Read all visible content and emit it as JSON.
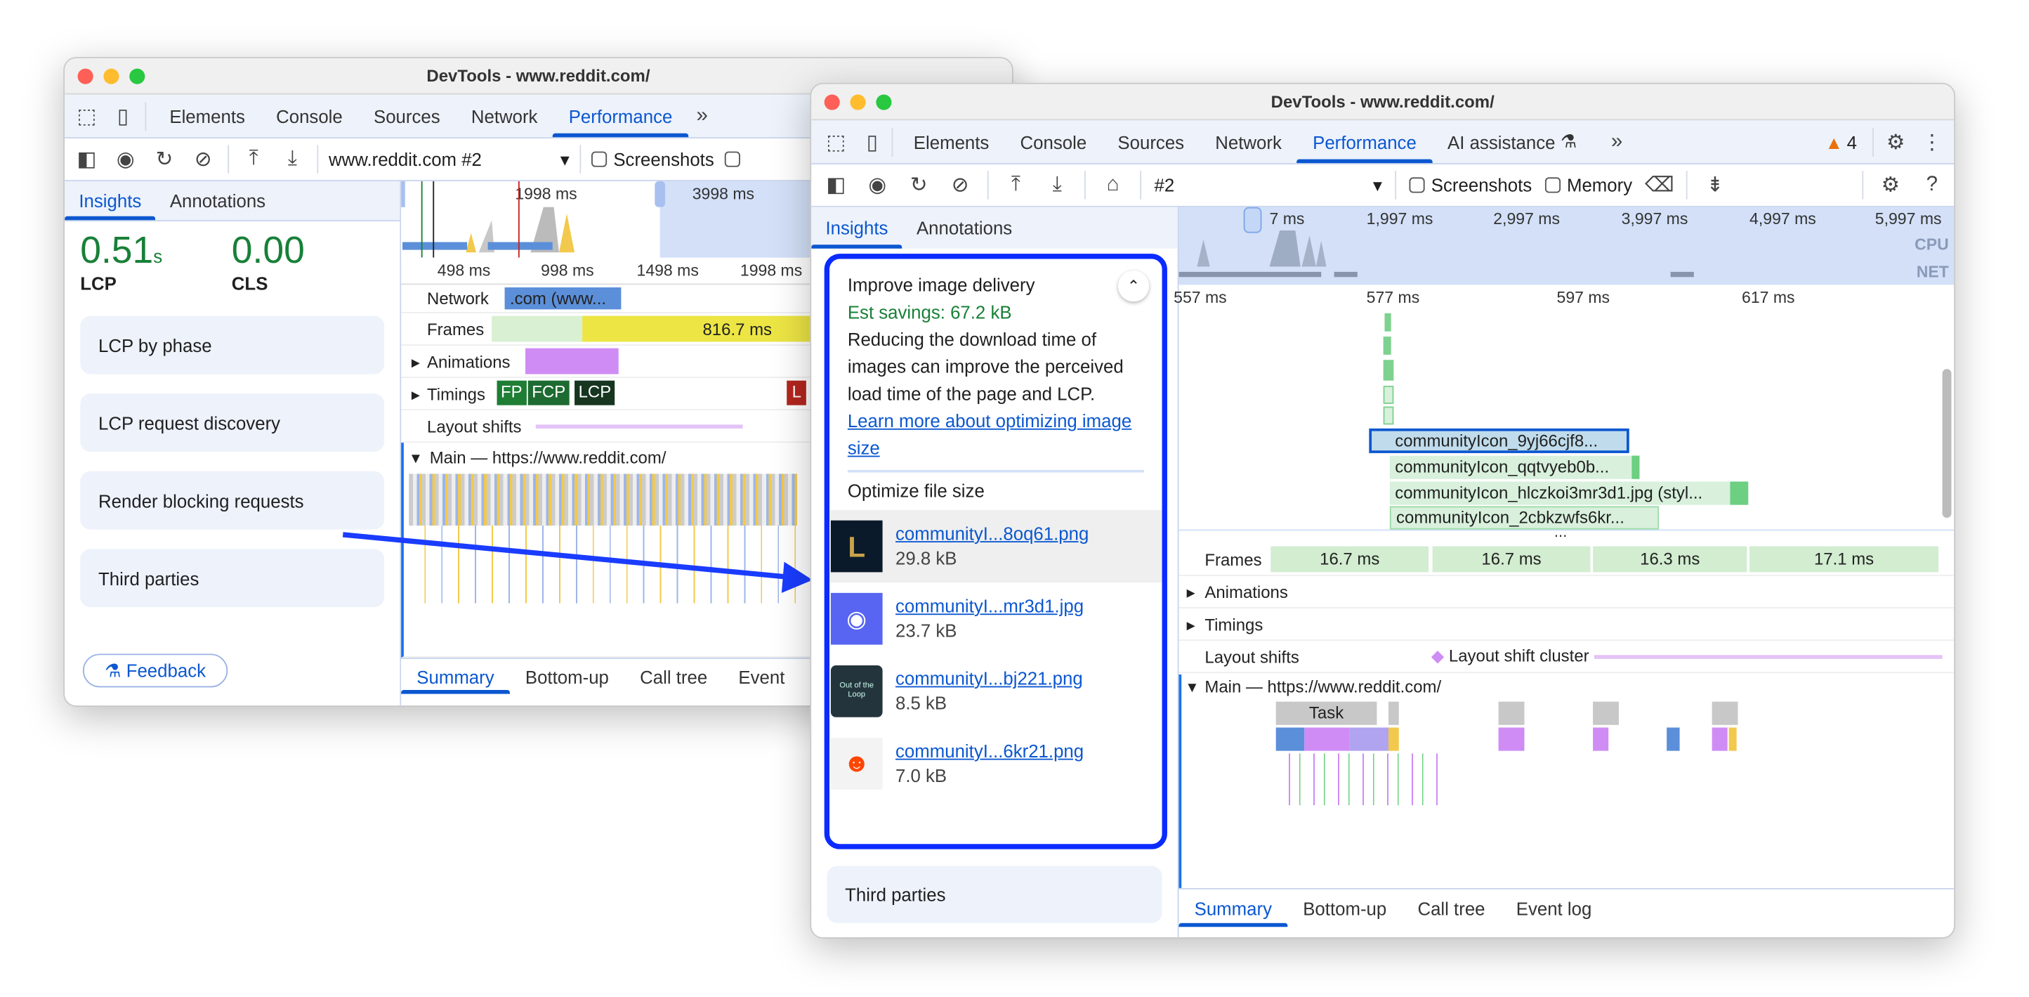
{
  "colors": {
    "accent": "#0b57d0",
    "green": "#188038",
    "highlight_border": "#0a2bff",
    "arrow": "#1a3cff",
    "warning": "#e8710a"
  },
  "back_window": {
    "title": "DevTools - www.reddit.com/",
    "tabs": [
      "Elements",
      "Console",
      "Sources",
      "Network",
      "Performance"
    ],
    "more_tabs_icon": "chevron-double-right",
    "recording_select": "www.reddit.com #2",
    "screenshots_label": "Screenshots",
    "subtabs": [
      "Insights",
      "Annotations"
    ],
    "metrics": [
      {
        "value": "0.51",
        "unit": "s",
        "label": "LCP"
      },
      {
        "value": "0.00",
        "unit": "",
        "label": "CLS"
      }
    ],
    "cards": [
      "LCP by phase",
      "LCP request discovery",
      "Render blocking requests",
      "Third parties"
    ],
    "feedback": "Feedback",
    "overview_ticks": [
      "1998 ms",
      "3998 ms"
    ],
    "ruler_ticks": [
      "498 ms",
      "998 ms",
      "1498 ms",
      "1998 ms"
    ],
    "tracks": {
      "network": "Network",
      "network_item": ".com (www...",
      "frames": "Frames",
      "frame_value": "816.7 ms",
      "animations": "Animations",
      "timings": "Timings",
      "timing_markers": [
        "FP",
        "FCP",
        "LCP",
        "L"
      ],
      "layout_shifts": "Layout shifts",
      "main": "Main — https://www.reddit.com/"
    },
    "bottom_tabs": [
      "Summary",
      "Bottom-up",
      "Call tree",
      "Event"
    ]
  },
  "front_window": {
    "title": "DevTools - www.reddit.com/",
    "tabs": [
      "Elements",
      "Console",
      "Sources",
      "Network",
      "Performance",
      "AI assistance"
    ],
    "warning_count": "4",
    "recording_select": "#2",
    "screenshots_label": "Screenshots",
    "memory_label": "Memory",
    "subtabs": [
      "Insights",
      "Annotations"
    ],
    "insight": {
      "title": "Improve image delivery",
      "savings": "Est savings: 67.2 kB",
      "description": "Reducing the download time of images can improve the perceived load time of the page and LCP.",
      "link": "Learn more about optimizing image size",
      "section": "Optimize file size",
      "items": [
        {
          "name": "communityI...8oq61.png",
          "size": "29.8 kB",
          "icon": "league-of-legends-icon"
        },
        {
          "name": "communityI...mr3d1.jpg",
          "size": "23.7 kB",
          "icon": "discord-icon"
        },
        {
          "name": "communityI...bj221.png",
          "size": "8.5 kB",
          "icon": "out-of-the-loop-icon",
          "icon_text": "Out of the Loop"
        },
        {
          "name": "communityI...6kr21.png",
          "size": "7.0 kB",
          "icon": "reddit-snoo-icon"
        }
      ]
    },
    "third_parties": "Third parties",
    "overview_ticks": [
      "7 ms",
      "1,997 ms",
      "2,997 ms",
      "3,997 ms",
      "4,997 ms",
      "5,997 ms"
    ],
    "overview_labels": {
      "cpu": "CPU",
      "net": "NET"
    },
    "ruler_ticks": [
      "557 ms",
      "577 ms",
      "597 ms",
      "617 ms"
    ],
    "network_requests": [
      "communityIcon_9yj66cjf8...",
      "communityIcon_qqtvyeb0b...",
      "communityIcon_hlczkoi3mr3d1.jpg (styl...",
      "communityIcon_2cbkzwfs6kr..."
    ],
    "tracks": {
      "frames": "Frames",
      "frame_values": [
        "16.7 ms",
        "16.7 ms",
        "16.3 ms",
        "17.1 ms"
      ],
      "animations": "Animations",
      "timings": "Timings",
      "layout_shifts": "Layout shifts",
      "layout_shift_cluster": "Layout shift cluster",
      "main": "Main — https://www.reddit.com/",
      "task": "Task"
    },
    "bottom_tabs": [
      "Summary",
      "Bottom-up",
      "Call tree",
      "Event log"
    ]
  }
}
